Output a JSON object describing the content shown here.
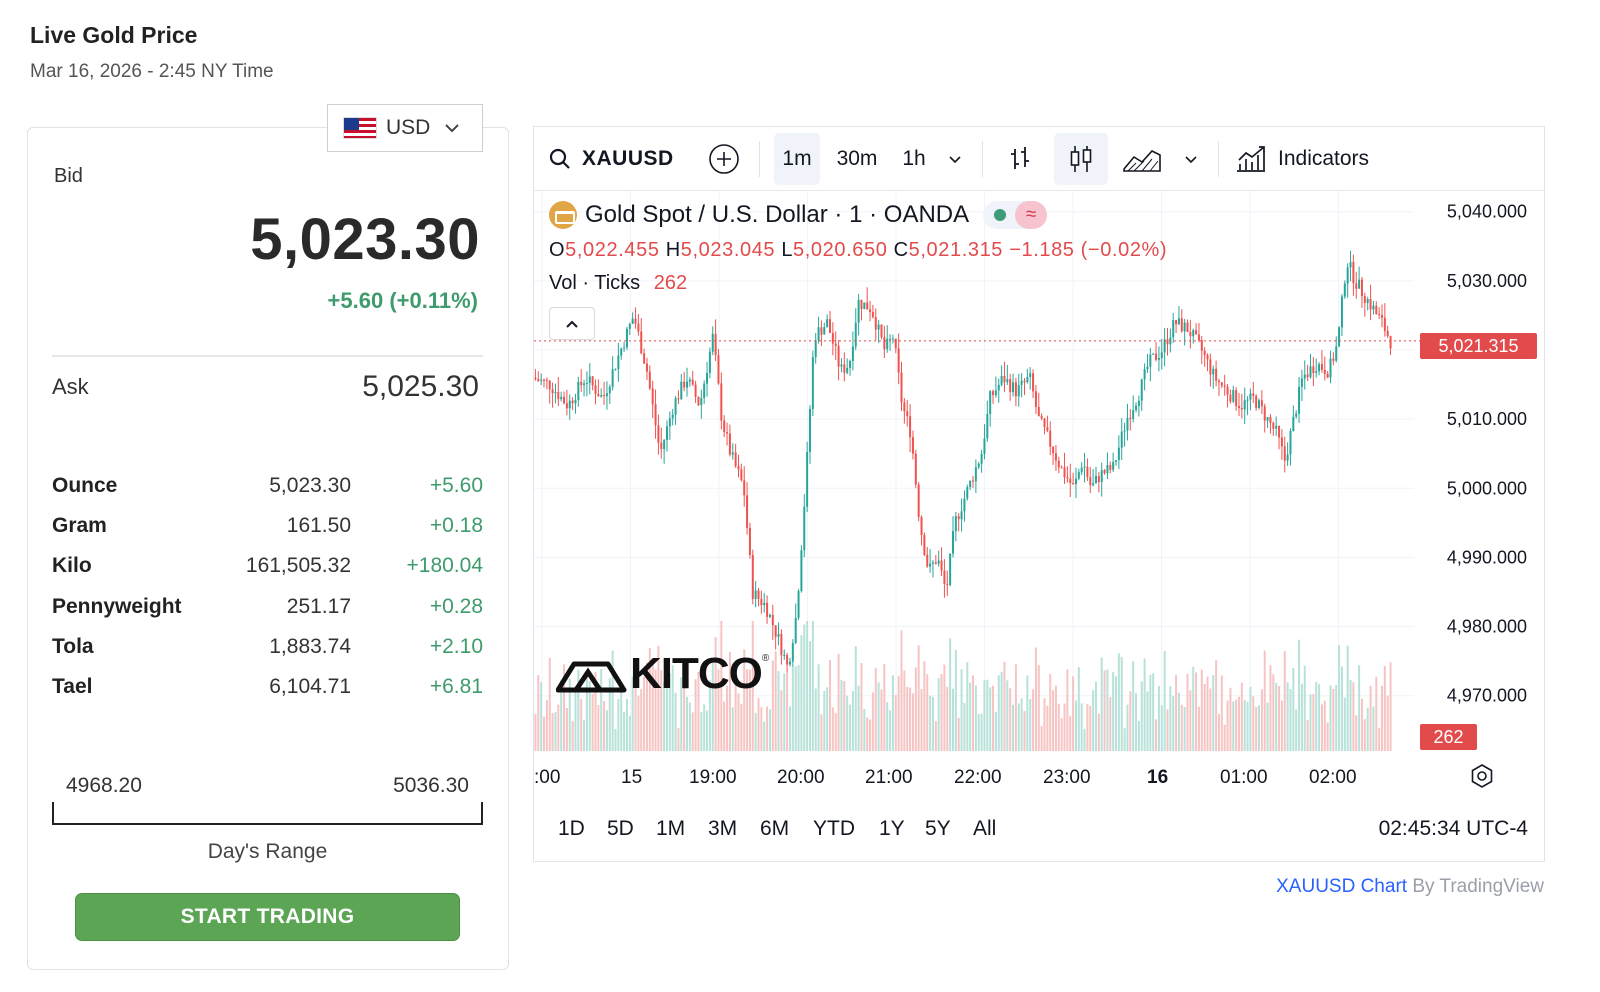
{
  "header": {
    "title": "Live Gold Price",
    "subtitle": "Mar 16, 2026 - 2:45 NY Time"
  },
  "currency": {
    "selected": "USD",
    "flag": "us-flag-icon"
  },
  "quote": {
    "bid_label": "Bid",
    "bid": "5,023.30",
    "change": "+5.60 (+0.11%)",
    "ask_label": "Ask",
    "ask": "5,025.30"
  },
  "units": [
    {
      "name": "Ounce",
      "price": "5,023.30",
      "change": "+5.60"
    },
    {
      "name": "Gram",
      "price": "161.50",
      "change": "+0.18"
    },
    {
      "name": "Kilo",
      "price": "161,505.32",
      "change": "+180.04"
    },
    {
      "name": "Pennyweight",
      "price": "251.17",
      "change": "+0.28"
    },
    {
      "name": "Tola",
      "price": "1,883.74",
      "change": "+2.10"
    },
    {
      "name": "Tael",
      "price": "6,104.71",
      "change": "+6.81"
    }
  ],
  "day_range": {
    "low": "4968.20",
    "high": "5036.30",
    "label": "Day's Range"
  },
  "cta": {
    "label": "START TRADING"
  },
  "chart": {
    "symbol": "XAUUSD",
    "intervals": [
      "1m",
      "30m",
      "1h"
    ],
    "active_interval": "1m",
    "indicators_label": "Indicators",
    "legend_title": "Gold Spot / U.S. Dollar · 1 · OANDA",
    "ohlc": {
      "o_label": "O",
      "o": "5,022.455",
      "h_label": "H",
      "h": "5,023.045",
      "l_label": "L",
      "l": "5,020.650",
      "c_label": "C",
      "c": "5,021.315",
      "chg": "−1.185 (−0.02%)"
    },
    "vol_label": "Vol · Ticks",
    "vol_value": "262",
    "last_price_tag": "5,021.315",
    "vol_tag": "262",
    "watermark": "KITCO",
    "time_labels": [
      ":00",
      "15",
      "19:00",
      "20:00",
      "21:00",
      "22:00",
      "23:00",
      "16",
      "01:00",
      "02:00"
    ],
    "ranges": [
      "1D",
      "5D",
      "1M",
      "3M",
      "6M",
      "YTD",
      "1Y",
      "5Y",
      "All"
    ],
    "clock": "02:45:34 UTC-4",
    "up_color": "#26a69a",
    "down_color": "#ef5350"
  },
  "chart_data": {
    "type": "candlestick",
    "title": "Gold Spot / U.S. Dollar · 1 · OANDA",
    "xlabel": "",
    "ylabel": "",
    "ylim": [
      4962,
      5043
    ],
    "y_ticks": [
      "5,040.000",
      "5,030.000",
      "5,020.000",
      "5,010.000",
      "5,000.000",
      "4,990.000",
      "4,980.000",
      "4,970.000"
    ],
    "y_tick_values": [
      5040,
      5030,
      5020,
      5010,
      5000,
      4990,
      4980,
      4970
    ],
    "last_price": 5021.315,
    "price_path": [
      [
        0,
        5016
      ],
      [
        0.02,
        5015
      ],
      [
        0.04,
        5012
      ],
      [
        0.06,
        5016
      ],
      [
        0.08,
        5013
      ],
      [
        0.1,
        5020
      ],
      [
        0.115,
        5025
      ],
      [
        0.13,
        5017
      ],
      [
        0.145,
        5005
      ],
      [
        0.16,
        5012
      ],
      [
        0.175,
        5016
      ],
      [
        0.19,
        5012
      ],
      [
        0.205,
        5022
      ],
      [
        0.215,
        5010
      ],
      [
        0.225,
        5005
      ],
      [
        0.24,
        5000
      ],
      [
        0.25,
        4985
      ],
      [
        0.265,
        4983
      ],
      [
        0.28,
        4978
      ],
      [
        0.29,
        4974
      ],
      [
        0.3,
        4982
      ],
      [
        0.31,
        5000
      ],
      [
        0.32,
        5022
      ],
      [
        0.335,
        5024
      ],
      [
        0.35,
        5017
      ],
      [
        0.36,
        5018
      ],
      [
        0.37,
        5027
      ],
      [
        0.385,
        5026
      ],
      [
        0.4,
        5020
      ],
      [
        0.41,
        5022
      ],
      [
        0.42,
        5012
      ],
      [
        0.43,
        5008
      ],
      [
        0.44,
        4995
      ],
      [
        0.45,
        4988
      ],
      [
        0.46,
        4990
      ],
      [
        0.47,
        4985
      ],
      [
        0.48,
        4995
      ],
      [
        0.495,
        5000
      ],
      [
        0.51,
        5005
      ],
      [
        0.52,
        5013
      ],
      [
        0.535,
        5016
      ],
      [
        0.55,
        5014
      ],
      [
        0.565,
        5016
      ],
      [
        0.575,
        5010
      ],
      [
        0.59,
        5006
      ],
      [
        0.6,
        5003
      ],
      [
        0.615,
        5000
      ],
      [
        0.625,
        5004
      ],
      [
        0.635,
        5000
      ],
      [
        0.645,
        5002
      ],
      [
        0.66,
        5003
      ],
      [
        0.675,
        5010
      ],
      [
        0.69,
        5014
      ],
      [
        0.7,
        5018
      ],
      [
        0.715,
        5020
      ],
      [
        0.73,
        5024
      ],
      [
        0.745,
        5023
      ],
      [
        0.76,
        5020
      ],
      [
        0.775,
        5016
      ],
      [
        0.79,
        5014
      ],
      [
        0.805,
        5012
      ],
      [
        0.82,
        5013
      ],
      [
        0.835,
        5010
      ],
      [
        0.845,
        5008
      ],
      [
        0.855,
        5004
      ],
      [
        0.865,
        5010
      ],
      [
        0.875,
        5016
      ],
      [
        0.89,
        5018
      ],
      [
        0.905,
        5017
      ],
      [
        0.915,
        5021
      ],
      [
        0.925,
        5033
      ],
      [
        0.935,
        5030
      ],
      [
        0.95,
        5027
      ],
      [
        0.965,
        5024
      ],
      [
        0.975,
        5021.3
      ]
    ]
  }
}
